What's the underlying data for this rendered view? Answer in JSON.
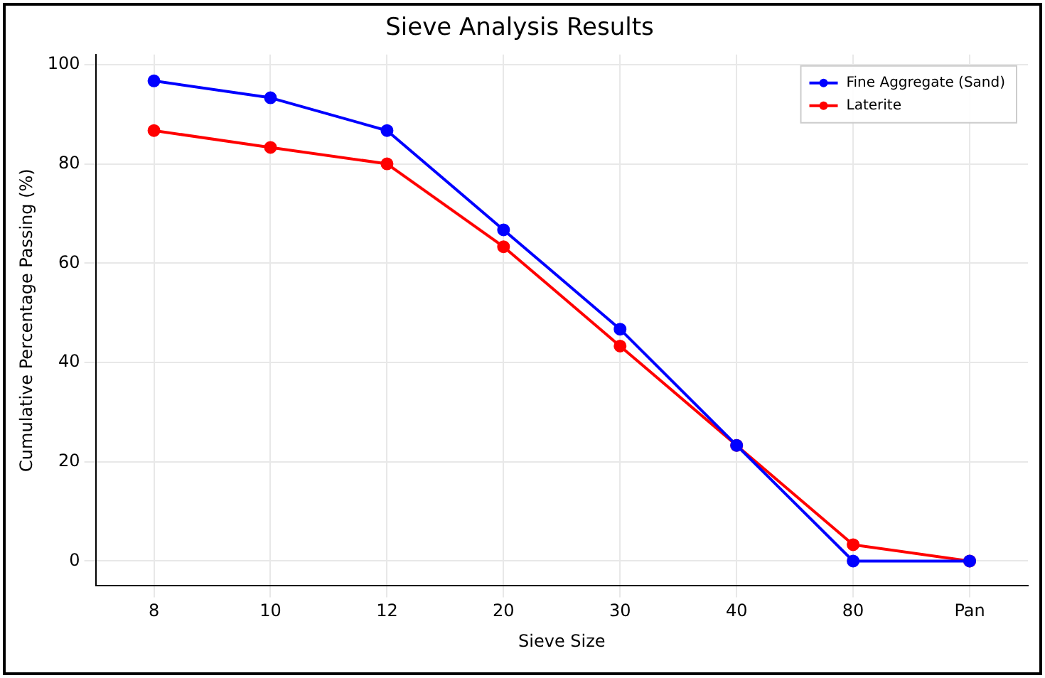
{
  "chart_data": {
    "type": "line",
    "title": "Sieve Analysis Results",
    "xlabel": "Sieve Size",
    "ylabel": "Cumulative Percentage Passing (%)",
    "categories": [
      "8",
      "10",
      "12",
      "20",
      "30",
      "40",
      "80",
      "Pan"
    ],
    "series": [
      {
        "name": "Fine Aggregate (Sand)",
        "color": "#0000ff",
        "values": [
          96.7,
          93.3,
          86.7,
          66.7,
          46.7,
          23.3,
          0,
          0
        ]
      },
      {
        "name": "Laterite",
        "color": "#ff0000",
        "values": [
          86.7,
          83.3,
          80,
          63.3,
          43.3,
          23.3,
          3.3,
          0
        ]
      }
    ],
    "ylim": [
      -5,
      102
    ],
    "yticks": [
      0,
      20,
      40,
      60,
      80,
      100
    ],
    "grid": true,
    "legend": "top right",
    "marker": "circle",
    "line_style": "solid"
  }
}
